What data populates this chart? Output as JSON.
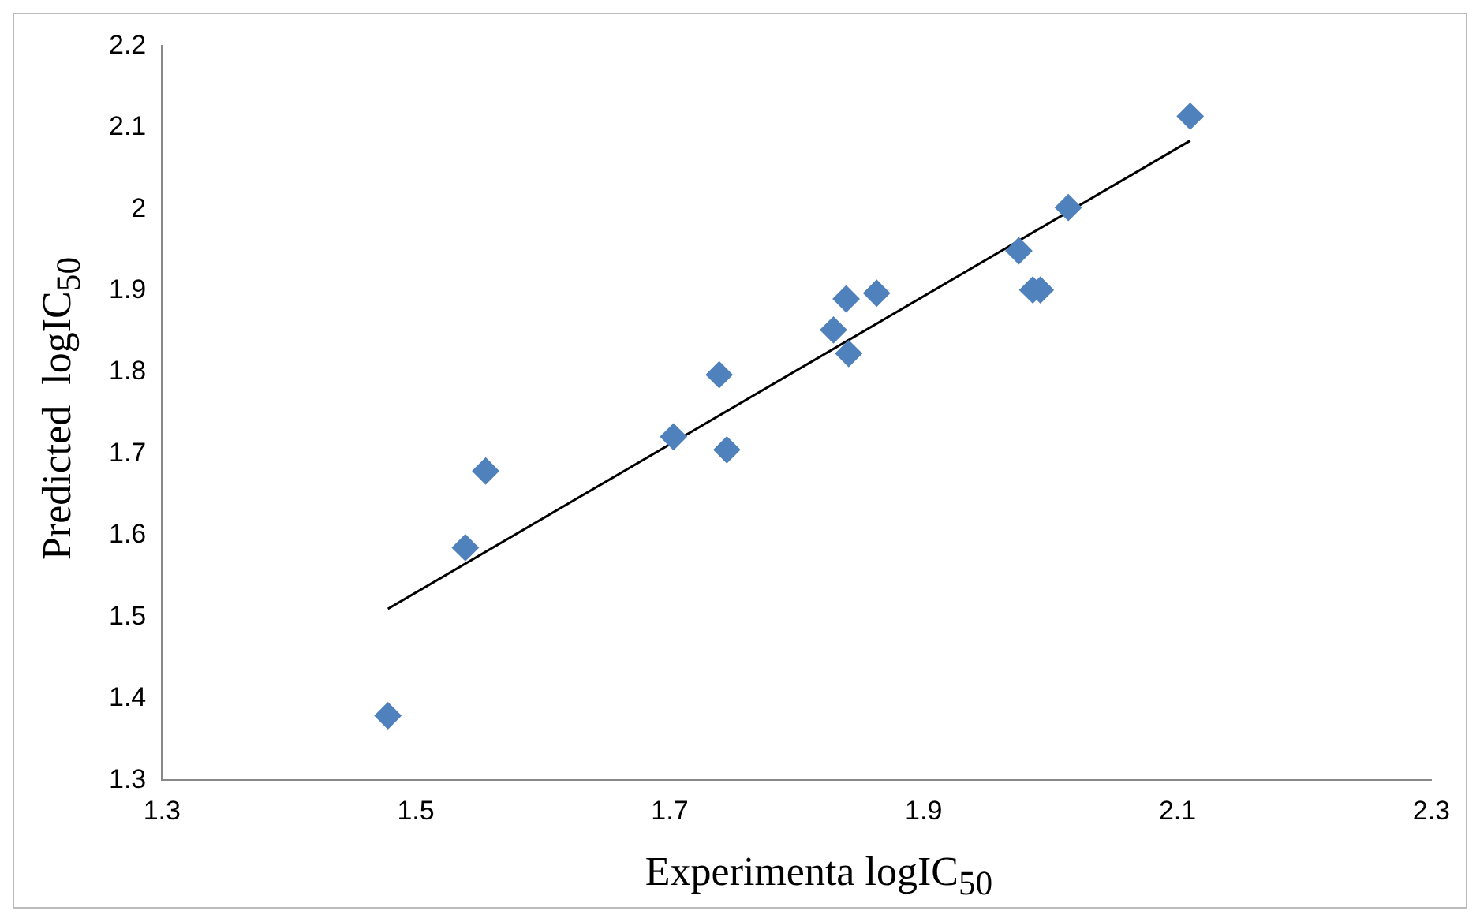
{
  "chart_data": {
    "type": "scatter",
    "xlabel": "Experimenta logIC$_{50}$",
    "ylabel": "Predicted  logIC$_{50}$",
    "grid": false,
    "legend": false,
    "xlim": [
      1.3,
      2.3
    ],
    "xticks": [
      1.3,
      1.5,
      1.7,
      1.9,
      2.1,
      2.3
    ],
    "ylim": [
      1.3,
      2.2
    ],
    "yticks": [
      1.3,
      1.4,
      1.5,
      1.6,
      1.7,
      1.8,
      1.9,
      {
        "value": 2,
        "label": "2"
      },
      2.1,
      2.2
    ],
    "series": [
      {
        "type": "scatter",
        "marker": "diamond",
        "color": "#4f81bd",
        "x": [
          1.478,
          1.539,
          1.555,
          1.703,
          1.739,
          1.745,
          1.829,
          1.839,
          1.841,
          1.863,
          1.975,
          1.986,
          1.992,
          2.014,
          2.11
        ],
        "values": [
          1.379,
          1.585,
          1.679,
          1.721,
          1.797,
          1.705,
          1.852,
          1.89,
          1.823,
          1.897,
          1.949,
          1.901,
          1.901,
          2.002,
          2.114
        ]
      },
      {
        "type": "line",
        "marker": "none",
        "color": "#000000",
        "x": [
          1.478,
          2.11
        ],
        "values": [
          1.51,
          2.084
        ]
      }
    ]
  }
}
